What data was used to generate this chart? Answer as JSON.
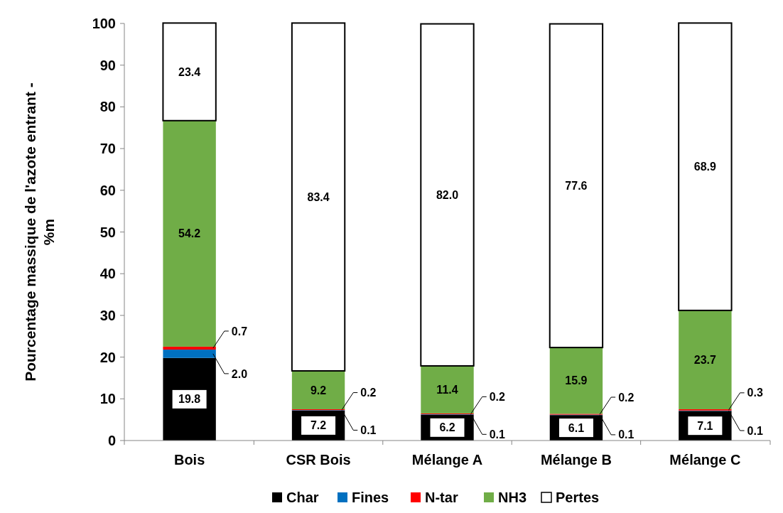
{
  "chart_data": {
    "type": "bar",
    "stacked": true,
    "ylabel": "Pourcentage massique de l'azote entrant - %m",
    "categories": [
      "Bois",
      "CSR Bois",
      "Mélange A",
      "Mélange B",
      "Mélange C"
    ],
    "series": [
      {
        "name": "Char",
        "color": "#000000",
        "values": [
          19.8,
          7.2,
          6.2,
          6.1,
          7.1
        ],
        "value_labels": [
          "19.8",
          "7.2",
          "6.2",
          "6.1",
          "7.1"
        ]
      },
      {
        "name": "Fines",
        "color": "#0070c0",
        "values": [
          2.0,
          0.1,
          0.1,
          0.1,
          0.1
        ],
        "value_labels": [
          "2.0",
          "0.1",
          "0.1",
          "0.1",
          "0.1"
        ]
      },
      {
        "name": "N-tar",
        "color": "#ff0000",
        "values": [
          0.7,
          0.2,
          0.2,
          0.2,
          0.3
        ],
        "value_labels": [
          "0.7",
          "0.2",
          "0.2",
          "0.2",
          "0.3"
        ]
      },
      {
        "name": "NH3",
        "color": "#70ad47",
        "values": [
          54.2,
          9.2,
          11.4,
          15.9,
          23.7
        ],
        "value_labels": [
          "54.2",
          "9.2",
          "11.4",
          "15.9",
          "23.7"
        ]
      },
      {
        "name": "Pertes",
        "color": "#ffffff",
        "values": [
          23.4,
          83.4,
          82.0,
          77.6,
          68.9
        ],
        "value_labels": [
          "23.4",
          "83.4",
          "82.0",
          "77.6",
          "68.9"
        ]
      }
    ],
    "ylim": [
      0,
      100
    ],
    "yticks": [
      0,
      10,
      20,
      30,
      40,
      50,
      60,
      70,
      80,
      90,
      100
    ],
    "legend": "bottom",
    "grid": false
  }
}
